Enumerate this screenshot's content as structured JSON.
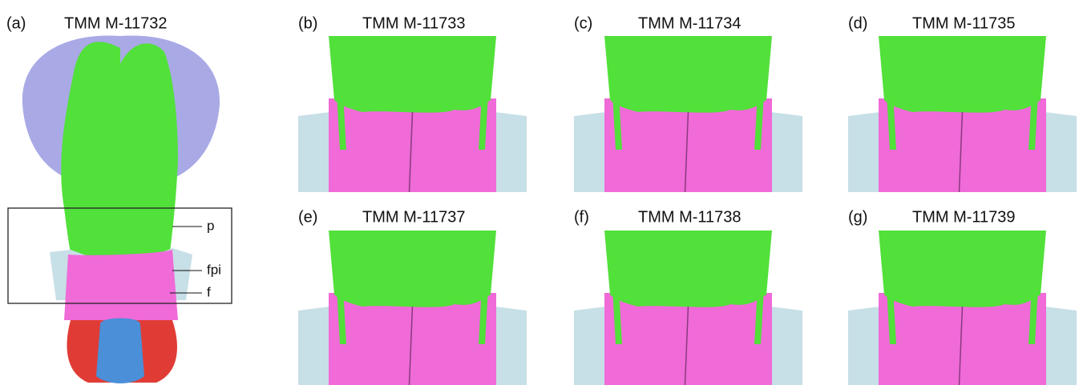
{
  "main_panel": {
    "letter": "(a)",
    "title": "TMM M-11732",
    "annotations": [
      "p",
      "fpi",
      "f"
    ]
  },
  "panels": [
    {
      "letter": "(b)",
      "title": "TMM M-11733"
    },
    {
      "letter": "(c)",
      "title": "TMM M-11734"
    },
    {
      "letter": "(d)",
      "title": "TMM M-11735"
    },
    {
      "letter": "(e)",
      "title": "TMM M-11737"
    },
    {
      "letter": "(f)",
      "title": "TMM M-11738"
    },
    {
      "letter": "(g)",
      "title": "TMM M-11739"
    }
  ]
}
